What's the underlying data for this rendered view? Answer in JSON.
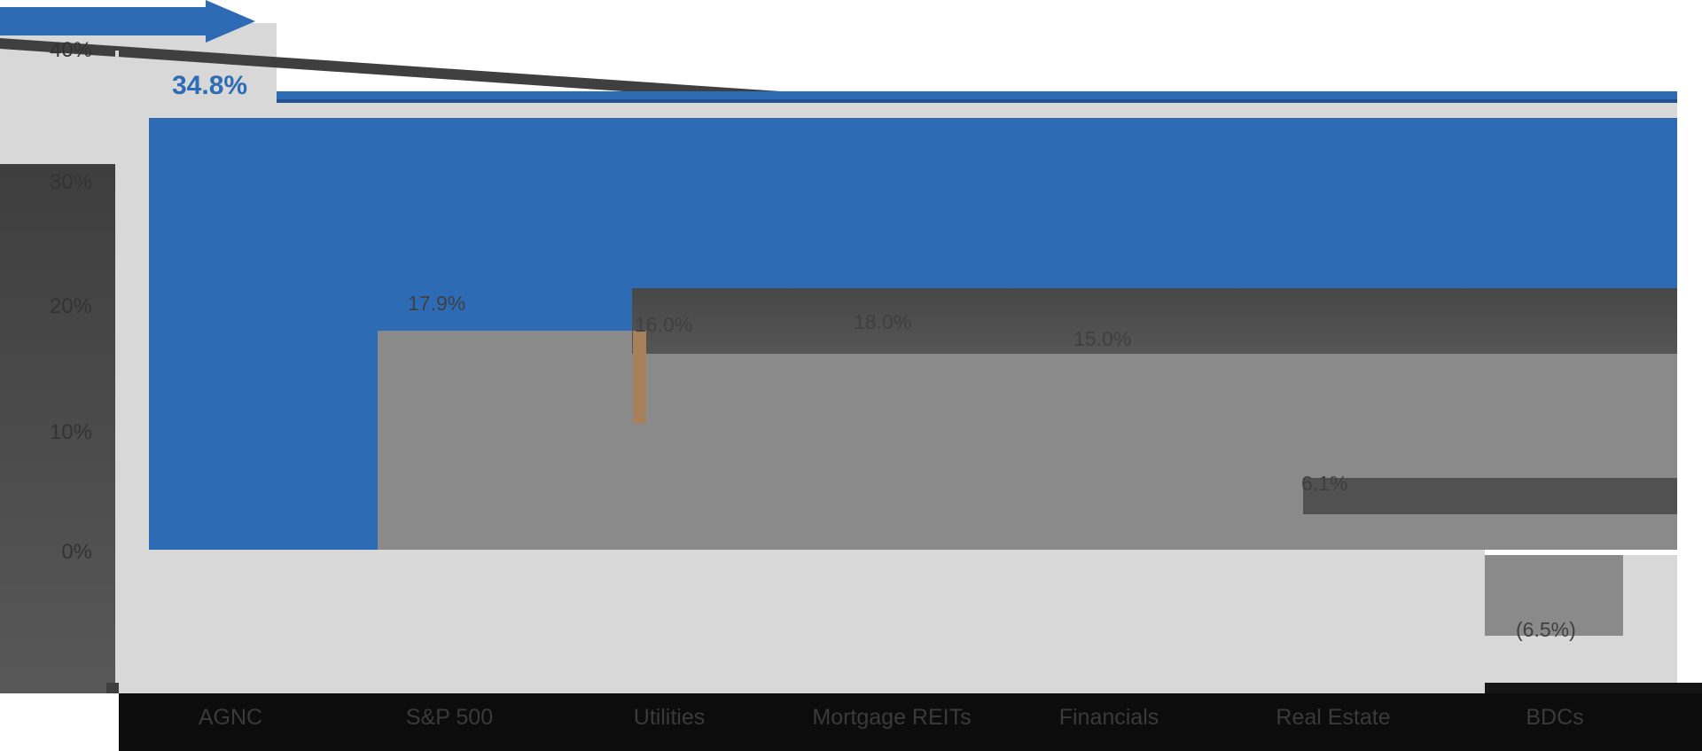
{
  "header": {
    "arrow_icon": "right-arrow"
  },
  "chart_data": {
    "type": "bar",
    "title": "",
    "xlabel": "",
    "ylabel": "",
    "categories": [
      "AGNC",
      "S&P 500",
      "Utilities",
      "Mortgage REITs",
      "Financials",
      "Real Estate",
      "BDCs"
    ],
    "series": [
      {
        "name": "Percent",
        "values": [
          34.8,
          17.9,
          16.0,
          18.0,
          15.0,
          6.1,
          -6.5
        ]
      }
    ],
    "data_labels": [
      "34.8%",
      "17.9%",
      "16.0%",
      "18.0%",
      "15.0%",
      "6.1%",
      "(6.5%)"
    ],
    "ytick_labels": [
      "40%",
      "30%",
      "20%",
      "10%",
      "0%"
    ],
    "ylim": [
      -10,
      40
    ],
    "grid": false,
    "legend": false,
    "highlight_category": "AGNC",
    "colors": {
      "highlight_bar": "#2d6cb5",
      "default_bar": "#8a8a8a",
      "overlay_dark_band": "#515151",
      "tan_strip": "#a5805b",
      "axis_band": "#0c0c0c",
      "light_background": "#d8d8d8"
    }
  }
}
